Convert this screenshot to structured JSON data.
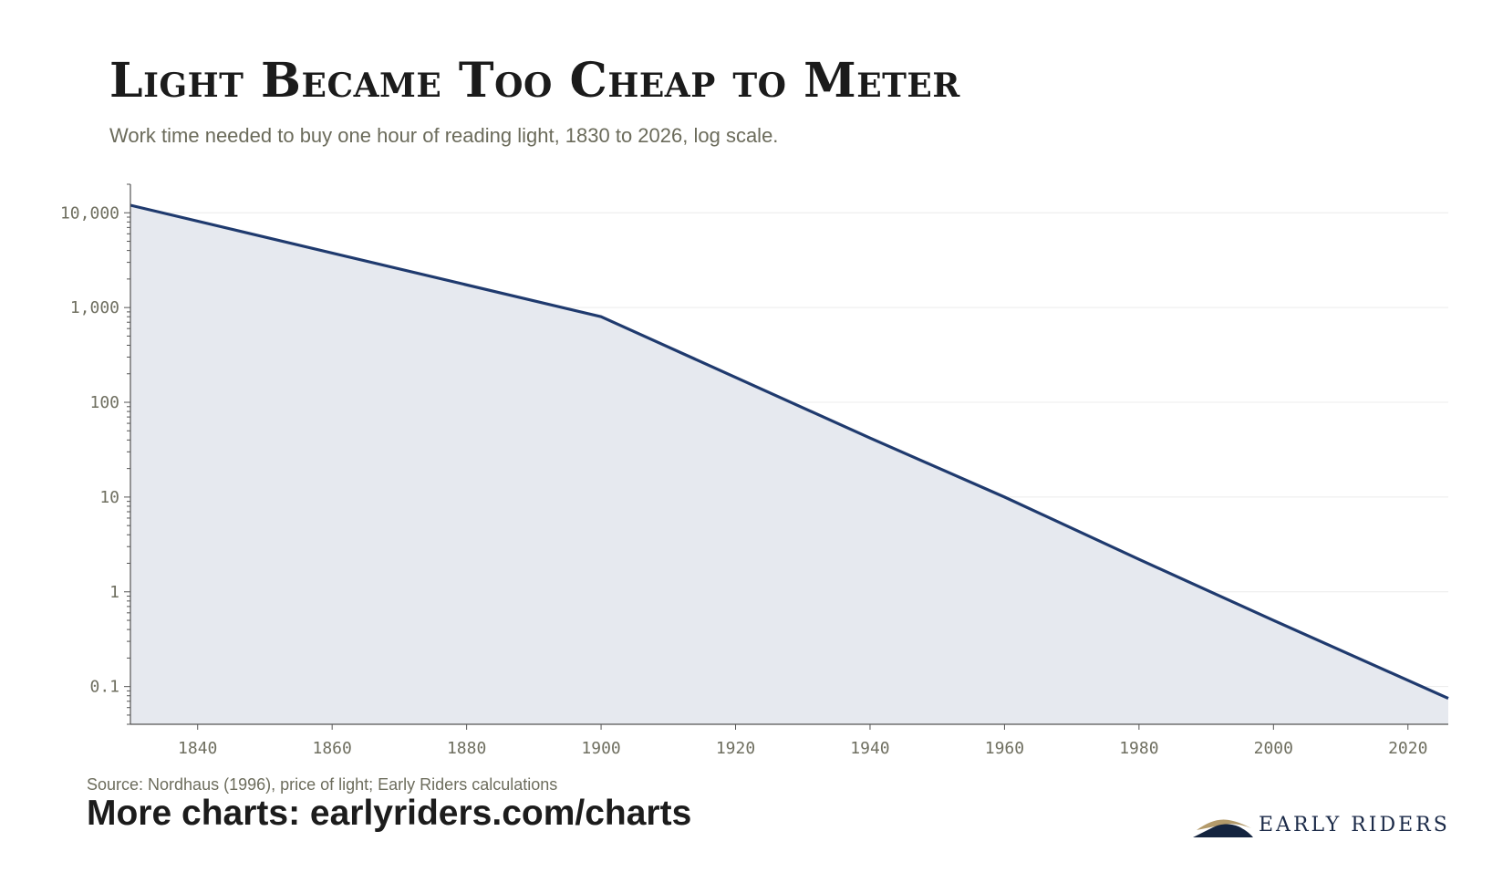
{
  "title": "Light Became Too Cheap to Meter",
  "subtitle": "Work time needed to buy one hour of reading light, 1830 to 2026, log scale.",
  "source": "Source: Nordhaus (1996), price of light; Early Riders calculations",
  "more_charts": "More charts: earlyriders.com/charts",
  "brand": {
    "name": "EARLY RIDERS",
    "colors": {
      "navy": "#14243f",
      "gold": "#b39a6a"
    }
  },
  "chart_data": {
    "type": "area",
    "title": "Light Became Too Cheap to Meter",
    "subtitle": "Work time needed to buy one hour of reading light, 1830 to 2026, log scale.",
    "xlabel": "",
    "ylabel": "",
    "yscale": "log",
    "xlim": [
      1830,
      2026
    ],
    "ylim": [
      0.04,
      20000
    ],
    "grid": "horizontal",
    "legend": "none",
    "x_ticks": [
      1840,
      1860,
      1880,
      1900,
      1920,
      1940,
      1960,
      1980,
      2000,
      2020
    ],
    "y_ticks": [
      {
        "value": 10000,
        "label": "10,000"
      },
      {
        "value": 1000,
        "label": "1,000"
      },
      {
        "value": 100,
        "label": "100"
      },
      {
        "value": 10,
        "label": "10"
      },
      {
        "value": 1,
        "label": "1"
      },
      {
        "value": 0.1,
        "label": "0.1"
      }
    ],
    "series": [
      {
        "x": [
          1830,
          1900,
          1940,
          1960,
          1980,
          2000,
          2026
        ],
        "y": [
          12000,
          800,
          42,
          10,
          2.2,
          0.5,
          0.075
        ]
      }
    ],
    "colors": {
      "line": "#1f3a6e",
      "fill": "#e6e9ef",
      "axis": "#555555",
      "grid": "#ececec"
    }
  }
}
